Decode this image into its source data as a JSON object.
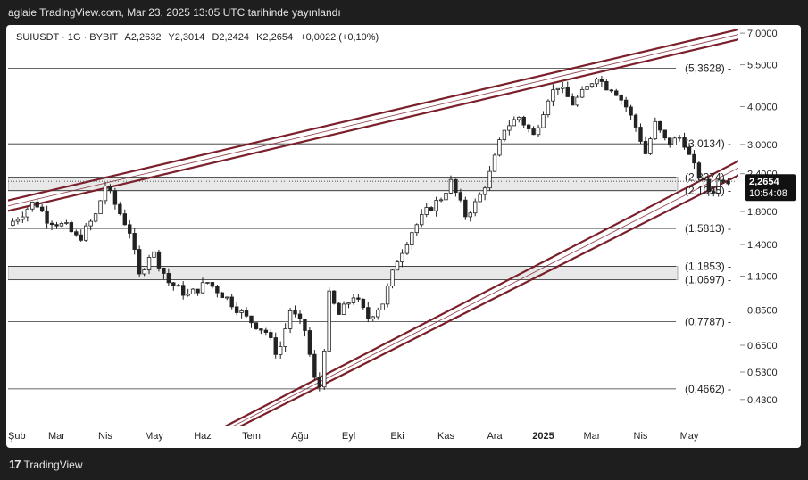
{
  "header": {
    "publish_text": "aglaie TradingView.com, Mar 23, 2025 13:05 UTC tarihinde yayınlandı"
  },
  "legend": {
    "symbol": "SUIUSDT · 1G · BYBIT",
    "open": "A2,2632",
    "high": "Y2,3014",
    "low": "D2,2424",
    "close": "K2,2654",
    "change": "+0,0022 (+0,10%)"
  },
  "footer": {
    "logo_icon": "tv-logo-icon",
    "brand": "TradingView"
  },
  "colors": {
    "channel": "#7b1f2a",
    "candle_up": "#222222",
    "level": "#333333",
    "zone": "#e8e8e8"
  },
  "chart_data": {
    "type": "candlestick",
    "symbol": "SUIUSDT",
    "interval": "1G",
    "exchange": "BYBIT",
    "y_scale": "log",
    "ylim": [
      0.38,
      7.2
    ],
    "y_ticks": [
      "7,0000",
      "5,5000",
      "4,0000",
      "3,0000",
      "2,4000",
      "1,8000",
      "1,4000",
      "1,1000",
      "0,8500",
      "0,6500",
      "0,5300",
      "0,4300"
    ],
    "x_ticks": [
      "Şub",
      "Mar",
      "Nis",
      "May",
      "Haz",
      "Tem",
      "Ağu",
      "Eyl",
      "Eki",
      "Kas",
      "Ara",
      "2025",
      "Mar",
      "Nis",
      "May"
    ],
    "horizontal_levels": [
      {
        "value": 5.3628,
        "label": "(5,3628)"
      },
      {
        "value": 3.0134,
        "label": "(3,0134)"
      },
      {
        "value": 2.3374,
        "label": "(2,3374)"
      },
      {
        "value": 2.1095,
        "label": "(2,1095)"
      },
      {
        "value": 1.5813,
        "label": "(1,5813)"
      },
      {
        "value": 1.1853,
        "label": "(1,1853)"
      },
      {
        "value": 1.0697,
        "label": "(1,0697)"
      },
      {
        "value": 0.7787,
        "label": "(0,7787)"
      },
      {
        "value": 0.4662,
        "label": "(0,4662)"
      }
    ],
    "zones": [
      [
        2.1095,
        2.3374
      ],
      [
        1.0697,
        1.1853
      ]
    ],
    "current_price": {
      "value": 2.2654,
      "label": "2,2654",
      "countdown": "10:54:08"
    },
    "price_path": [
      {
        "m": 0.0,
        "p": 1.62
      },
      {
        "m": 0.3,
        "p": 1.78
      },
      {
        "m": 0.55,
        "p": 1.95
      },
      {
        "m": 0.8,
        "p": 1.7
      },
      {
        "m": 1.2,
        "p": 1.6
      },
      {
        "m": 1.45,
        "p": 1.45
      },
      {
        "m": 1.8,
        "p": 1.75
      },
      {
        "m": 2.0,
        "p": 2.2
      },
      {
        "m": 2.2,
        "p": 1.9
      },
      {
        "m": 2.5,
        "p": 1.55
      },
      {
        "m": 2.7,
        "p": 1.1
      },
      {
        "m": 2.95,
        "p": 1.35
      },
      {
        "m": 3.3,
        "p": 1.05
      },
      {
        "m": 3.7,
        "p": 0.95
      },
      {
        "m": 4.1,
        "p": 1.05
      },
      {
        "m": 4.5,
        "p": 0.93
      },
      {
        "m": 4.9,
        "p": 0.8
      },
      {
        "m": 5.3,
        "p": 0.72
      },
      {
        "m": 5.55,
        "p": 0.6
      },
      {
        "m": 5.8,
        "p": 0.85
      },
      {
        "m": 6.1,
        "p": 0.73
      },
      {
        "m": 6.3,
        "p": 0.5
      },
      {
        "m": 6.42,
        "p": 0.47
      },
      {
        "m": 6.6,
        "p": 0.95
      },
      {
        "m": 6.8,
        "p": 0.82
      },
      {
        "m": 7.1,
        "p": 0.95
      },
      {
        "m": 7.4,
        "p": 0.8
      },
      {
        "m": 7.7,
        "p": 0.9
      },
      {
        "m": 8.0,
        "p": 1.25
      },
      {
        "m": 8.3,
        "p": 1.55
      },
      {
        "m": 8.6,
        "p": 1.8
      },
      {
        "m": 8.9,
        "p": 2.0
      },
      {
        "m": 9.1,
        "p": 2.25
      },
      {
        "m": 9.4,
        "p": 1.75
      },
      {
        "m": 9.65,
        "p": 1.95
      },
      {
        "m": 9.9,
        "p": 2.4
      },
      {
        "m": 10.2,
        "p": 3.4
      },
      {
        "m": 10.5,
        "p": 3.7
      },
      {
        "m": 10.8,
        "p": 3.2
      },
      {
        "m": 11.1,
        "p": 4.3
      },
      {
        "m": 11.3,
        "p": 4.7
      },
      {
        "m": 11.6,
        "p": 4.1
      },
      {
        "m": 11.85,
        "p": 4.5
      },
      {
        "m": 12.1,
        "p": 5.1
      },
      {
        "m": 12.25,
        "p": 4.7
      },
      {
        "m": 12.45,
        "p": 4.6
      },
      {
        "m": 12.7,
        "p": 4.0
      },
      {
        "m": 12.95,
        "p": 3.3
      },
      {
        "m": 13.1,
        "p": 2.8
      },
      {
        "m": 13.3,
        "p": 3.5
      },
      {
        "m": 13.55,
        "p": 3.0
      },
      {
        "m": 13.85,
        "p": 3.2
      },
      {
        "m": 14.05,
        "p": 2.6
      },
      {
        "m": 14.25,
        "p": 2.3
      },
      {
        "m": 14.45,
        "p": 2.05
      },
      {
        "m": 14.65,
        "p": 2.35
      },
      {
        "m": 14.85,
        "p": 2.27
      }
    ],
    "channel": {
      "upper_outer": [
        {
          "m": -0.05,
          "p": 1.95
        },
        {
          "m": 15.4,
          "p": 7.45
        }
      ],
      "upper_inner": [
        {
          "m": -0.05,
          "p": 1.8
        },
        {
          "m": 15.4,
          "p": 6.9
        }
      ],
      "upper_mid": [
        {
          "m": -0.05,
          "p": 1.87
        },
        {
          "m": 15.4,
          "p": 7.17
        }
      ],
      "lower_outer": [
        {
          "m": 4.15,
          "p": 0.33
        },
        {
          "m": 15.4,
          "p": 2.85
        }
      ],
      "lower_inner": [
        {
          "m": 4.45,
          "p": 0.33
        },
        {
          "m": 15.4,
          "p": 2.55
        }
      ],
      "lower_mid": [
        {
          "m": 4.3,
          "p": 0.33
        },
        {
          "m": 15.4,
          "p": 2.7
        }
      ]
    }
  }
}
